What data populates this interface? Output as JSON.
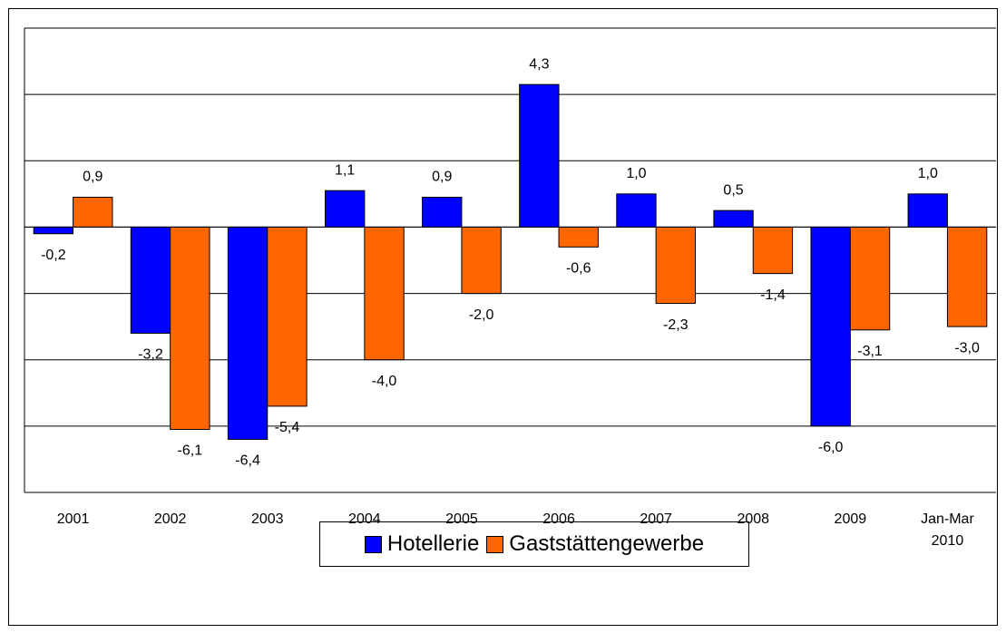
{
  "chart_data": {
    "type": "bar",
    "categories": [
      "2001",
      "2002",
      "2003",
      "2004",
      "2005",
      "2006",
      "2007",
      "2008",
      "2009",
      "Jan-Mar 2010"
    ],
    "series": [
      {
        "name": "Hotellerie",
        "color": "#0000ff",
        "values": [
          -0.2,
          -3.2,
          -6.4,
          1.1,
          0.9,
          4.3,
          1.0,
          0.5,
          -6.0,
          1.0
        ],
        "value_labels": [
          "-0,2",
          "-3,2",
          "-6,4",
          "1,1",
          "0,9",
          "4,3",
          "1,0",
          "0,5",
          "-6,0",
          "1,0"
        ]
      },
      {
        "name": "Gaststättengewerbe",
        "color": "#ff6600",
        "values": [
          0.9,
          -6.1,
          -5.4,
          -4.0,
          -2.0,
          -0.6,
          -2.3,
          -1.4,
          -3.1,
          -3.0
        ],
        "value_labels": [
          "0,9",
          "-6,1",
          "-5,4",
          "-4,0",
          "-2,0",
          "-0,6",
          "-2,3",
          "-1,4",
          "-3,1",
          "-3,0"
        ]
      }
    ],
    "ylim": [
      -8,
      6
    ],
    "yticks": [
      -8,
      -6,
      -4,
      -2,
      0,
      2,
      4,
      6
    ],
    "grid": true,
    "legend": "bottom"
  }
}
